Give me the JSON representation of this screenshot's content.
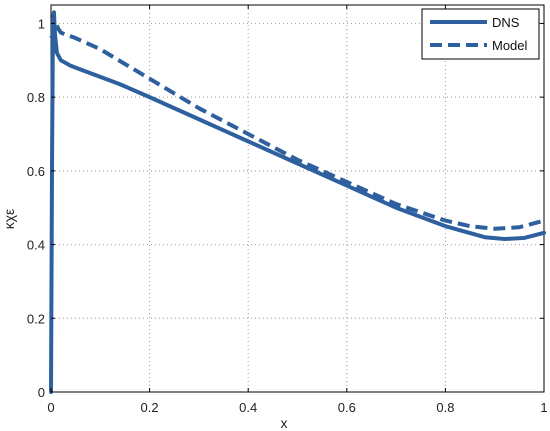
{
  "chart_data": {
    "type": "line",
    "title": "",
    "xlabel": "x",
    "ylabel": "κχε",
    "xlim": [
      0,
      1
    ],
    "ylim": [
      0,
      1.05
    ],
    "grid": true,
    "legend_position": "top-right",
    "x_ticks": [
      "0",
      "0.2",
      "0.4",
      "0.6",
      "0.8",
      "1"
    ],
    "x_tick_values": [
      0,
      0.2,
      0.4,
      0.6,
      0.8,
      1.0
    ],
    "y_ticks": [
      "0",
      "0.2",
      "0.4",
      "0.6",
      "0.8",
      "1"
    ],
    "y_tick_values": [
      0,
      0.2,
      0.4,
      0.6,
      0.8,
      1.0
    ],
    "series": [
      {
        "name": "DNS",
        "style": "solid",
        "color": "#2e5f9e",
        "x": [
          0.0,
          0.002,
          0.004,
          0.006,
          0.008,
          0.012,
          0.02,
          0.04,
          0.07,
          0.1,
          0.14,
          0.2,
          0.3,
          0.4,
          0.5,
          0.6,
          0.7,
          0.8,
          0.88,
          0.92,
          0.96,
          1.0
        ],
        "y": [
          0.0,
          0.6,
          1.01,
          1.03,
          0.97,
          0.92,
          0.9,
          0.885,
          0.87,
          0.855,
          0.835,
          0.8,
          0.74,
          0.68,
          0.62,
          0.56,
          0.5,
          0.45,
          0.42,
          0.415,
          0.418,
          0.432
        ]
      },
      {
        "name": "Model",
        "style": "dashed",
        "color": "#2e5f9e",
        "x": [
          0.0,
          0.005,
          0.01,
          0.015,
          0.02,
          0.03,
          0.05,
          0.1,
          0.2,
          0.3,
          0.4,
          0.5,
          0.6,
          0.7,
          0.8,
          0.85,
          0.9,
          0.95,
          1.0
        ],
        "y": [
          0.96,
          0.97,
          1.0,
          0.985,
          0.975,
          0.97,
          0.96,
          0.93,
          0.85,
          0.77,
          0.7,
          0.63,
          0.57,
          0.51,
          0.465,
          0.45,
          0.443,
          0.447,
          0.465
        ]
      }
    ]
  }
}
